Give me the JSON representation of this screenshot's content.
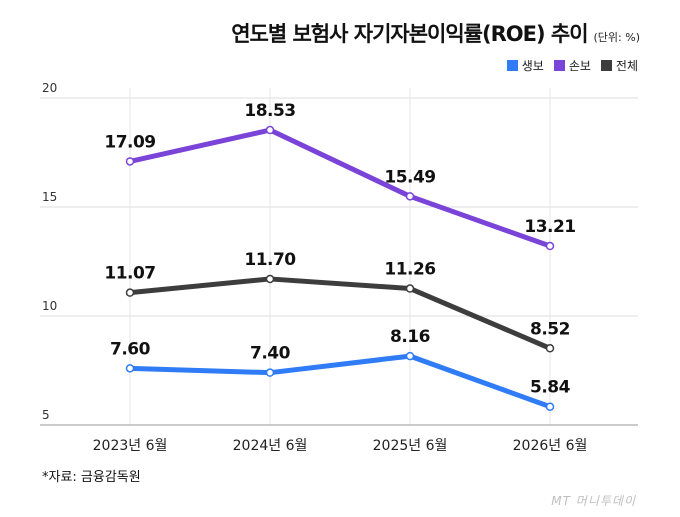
{
  "header": {
    "title": "연도별 보험사 자기자본이익률(ROE) 추이",
    "unit": "(단위: %)"
  },
  "footer": {
    "source": "*자료: 금융감독원",
    "watermark": "MT 머니투데이"
  },
  "chart_data": {
    "type": "line",
    "categories": [
      "2023년 6월",
      "2024년 6월",
      "2025년 6월",
      "2026년 6월"
    ],
    "series": [
      {
        "name": "생보",
        "values": [
          7.6,
          7.4,
          8.16,
          5.84
        ],
        "color": "#2f7cf6",
        "labels": [
          "7.60",
          "7.40",
          "8.16",
          "5.84"
        ]
      },
      {
        "name": "손보",
        "values": [
          17.09,
          18.53,
          15.49,
          13.21
        ],
        "color": "#7b44d8",
        "labels": [
          "17.09",
          "18.53",
          "15.49",
          "13.21"
        ]
      },
      {
        "name": "전체",
        "values": [
          11.07,
          11.7,
          11.26,
          8.52
        ],
        "color": "#3d3d3d",
        "labels": [
          "11.07",
          "11.70",
          "11.26",
          "8.52"
        ]
      }
    ],
    "yticks": [
      "5",
      "10",
      "15",
      "20"
    ],
    "ylim": [
      5,
      20
    ],
    "grid": true,
    "legend_position": "top-right"
  }
}
